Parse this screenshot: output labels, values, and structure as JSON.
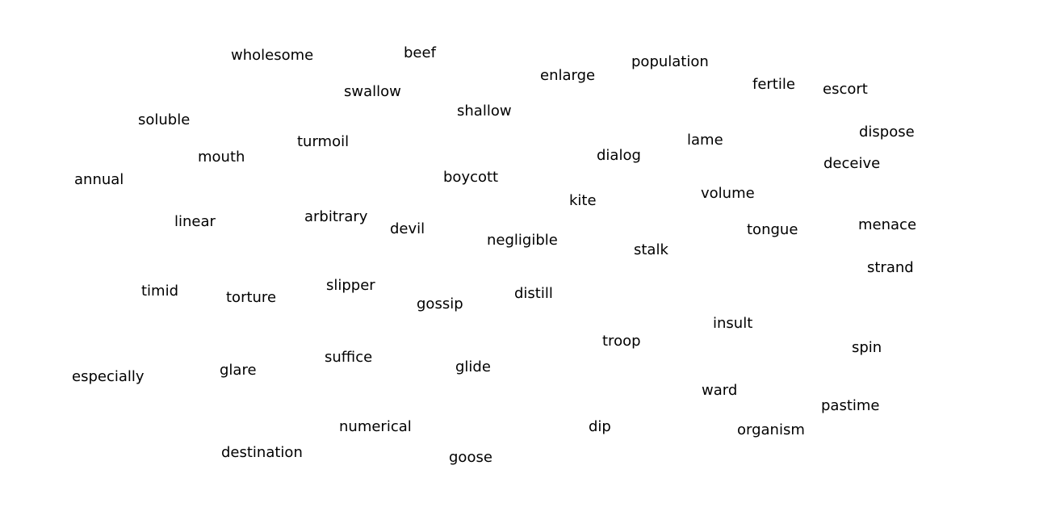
{
  "word_cloud": {
    "words": [
      "wholesome",
      "beef",
      "population",
      "enlarge",
      "fertile",
      "escort",
      "swallow",
      "shallow",
      "soluble",
      "dispose",
      "lame",
      "turmoil",
      "mouth",
      "dialog",
      "deceive",
      "annual",
      "boycott",
      "kite",
      "volume",
      "arbitrary",
      "linear",
      "devil",
      "tongue",
      "menace",
      "negligible",
      "stalk",
      "strand",
      "slipper",
      "timid",
      "torture",
      "distill",
      "gossip",
      "insult",
      "troop",
      "spin",
      "suffice",
      "glide",
      "glare",
      "especially",
      "ward",
      "pastime",
      "numerical",
      "dip",
      "organism",
      "destination",
      "goose"
    ]
  },
  "colors": {
    "background": "#ffffff",
    "text": "#000000"
  }
}
